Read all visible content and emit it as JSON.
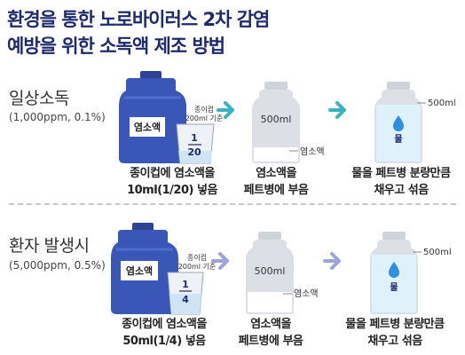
{
  "title": {
    "line1": "환경을 통한 노로바이러스 2차 감염",
    "line2": "예방을 위한 소독액 제조 방법"
  },
  "colors": {
    "title": "#1d2a6e",
    "jug_blue": "#3a57b7",
    "arrow_teal": "#39b3c2",
    "arrow_lavender": "#9fa3d8",
    "bottle_gray": "#d8dbe1",
    "water_blue": "#dff1fb"
  },
  "sections": [
    {
      "title": "일상소독",
      "subtitle": "(1,000ppm, 0.1%)",
      "arrow_color_name": "teal",
      "jug_label": "염소액",
      "cup_note_line1": "종이컵",
      "cup_note_line2": "200ml 기준",
      "fraction_top": "1",
      "fraction_bottom": "20",
      "step1_line1": "종이컵에 염소액을",
      "step1_line2": "10ml(1/20) 넣음",
      "bottle_volume": "500ml",
      "bottle_fill_label": "염소액",
      "step2_line1": "염소액을",
      "step2_line2": "페트병에 부음",
      "water_label": "물",
      "water_volume": "500ml",
      "step3_line1": "물을 페트병 분량만큼",
      "step3_line2": "채우고 섞음"
    },
    {
      "title": "환자 발생시",
      "subtitle": "(5,000ppm, 0.5%)",
      "arrow_color_name": "lavender",
      "jug_label": "염소액",
      "cup_note_line1": "종이컵",
      "cup_note_line2": "200ml 기준",
      "fraction_top": "1",
      "fraction_bottom": "4",
      "step1_line1": "종이컵에 염소액을",
      "step1_line2": "50ml(1/4) 넣음",
      "bottle_volume": "500ml",
      "bottle_fill_label": "염소액",
      "step2_line1": "염소액을",
      "step2_line2": "페트병에 부음",
      "water_label": "물",
      "water_volume": "500ml",
      "step3_line1": "물을 페트병 분량만큼",
      "step3_line2": "채우고 섞음"
    }
  ]
}
